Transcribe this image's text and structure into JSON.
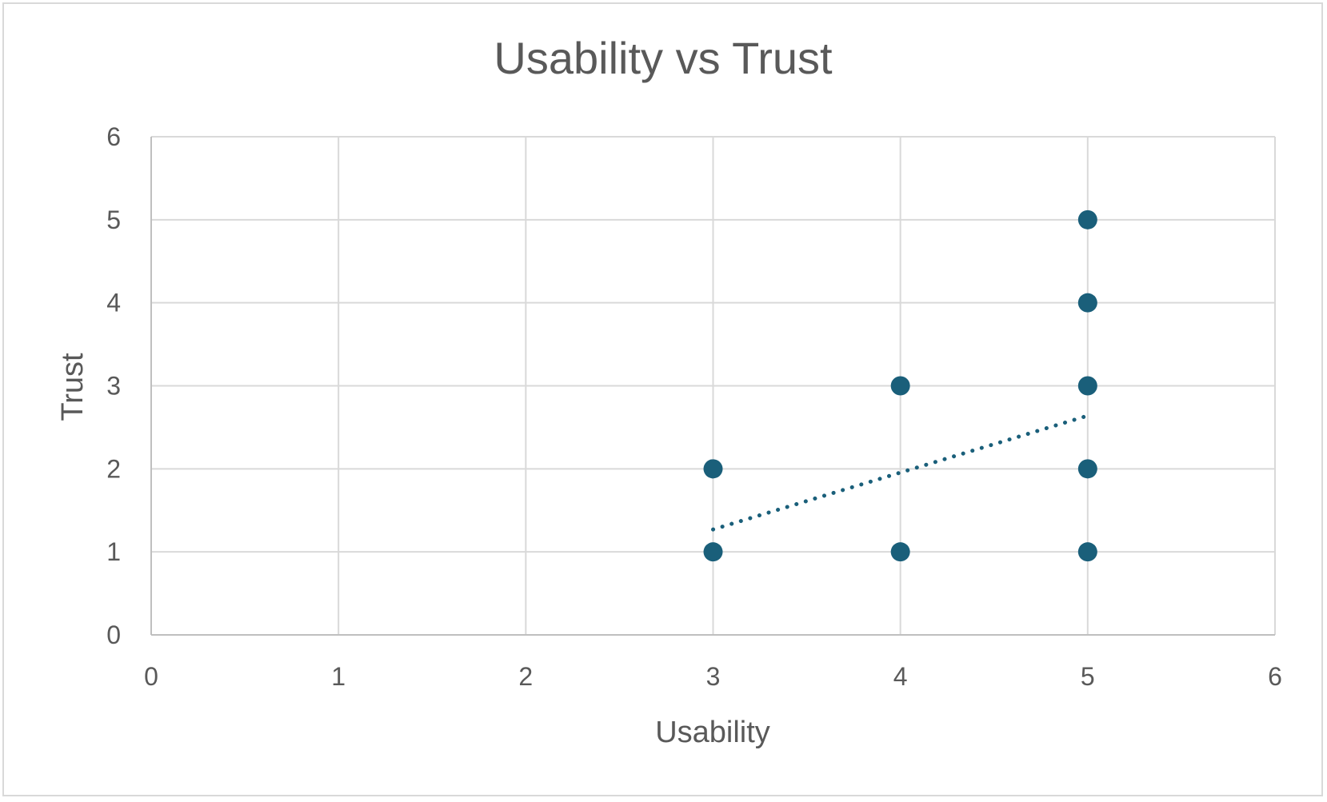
{
  "chart_data": {
    "type": "scatter",
    "title": "Usability vs Trust",
    "xlabel": "Usability",
    "ylabel": "Trust",
    "xlim": [
      0,
      6
    ],
    "ylim": [
      0,
      6
    ],
    "x_ticks": [
      "0",
      "1",
      "2",
      "3",
      "4",
      "5",
      "6"
    ],
    "y_ticks": [
      "0",
      "1",
      "2",
      "3",
      "4",
      "5",
      "6"
    ],
    "grid": true,
    "series": [
      {
        "points": [
          {
            "x": 3,
            "y": 1
          },
          {
            "x": 3,
            "y": 2
          },
          {
            "x": 4,
            "y": 1
          },
          {
            "x": 4,
            "y": 3
          },
          {
            "x": 5,
            "y": 1
          },
          {
            "x": 5,
            "y": 2
          },
          {
            "x": 5,
            "y": 3
          },
          {
            "x": 5,
            "y": 4
          },
          {
            "x": 5,
            "y": 5
          }
        ],
        "color": "#1a5f7a"
      }
    ],
    "trendline": {
      "type": "linear",
      "style": "dotted",
      "color": "#1a5f7a",
      "from": {
        "x": 3,
        "y": 1.27
      },
      "to": {
        "x": 5,
        "y": 2.64
      }
    }
  }
}
